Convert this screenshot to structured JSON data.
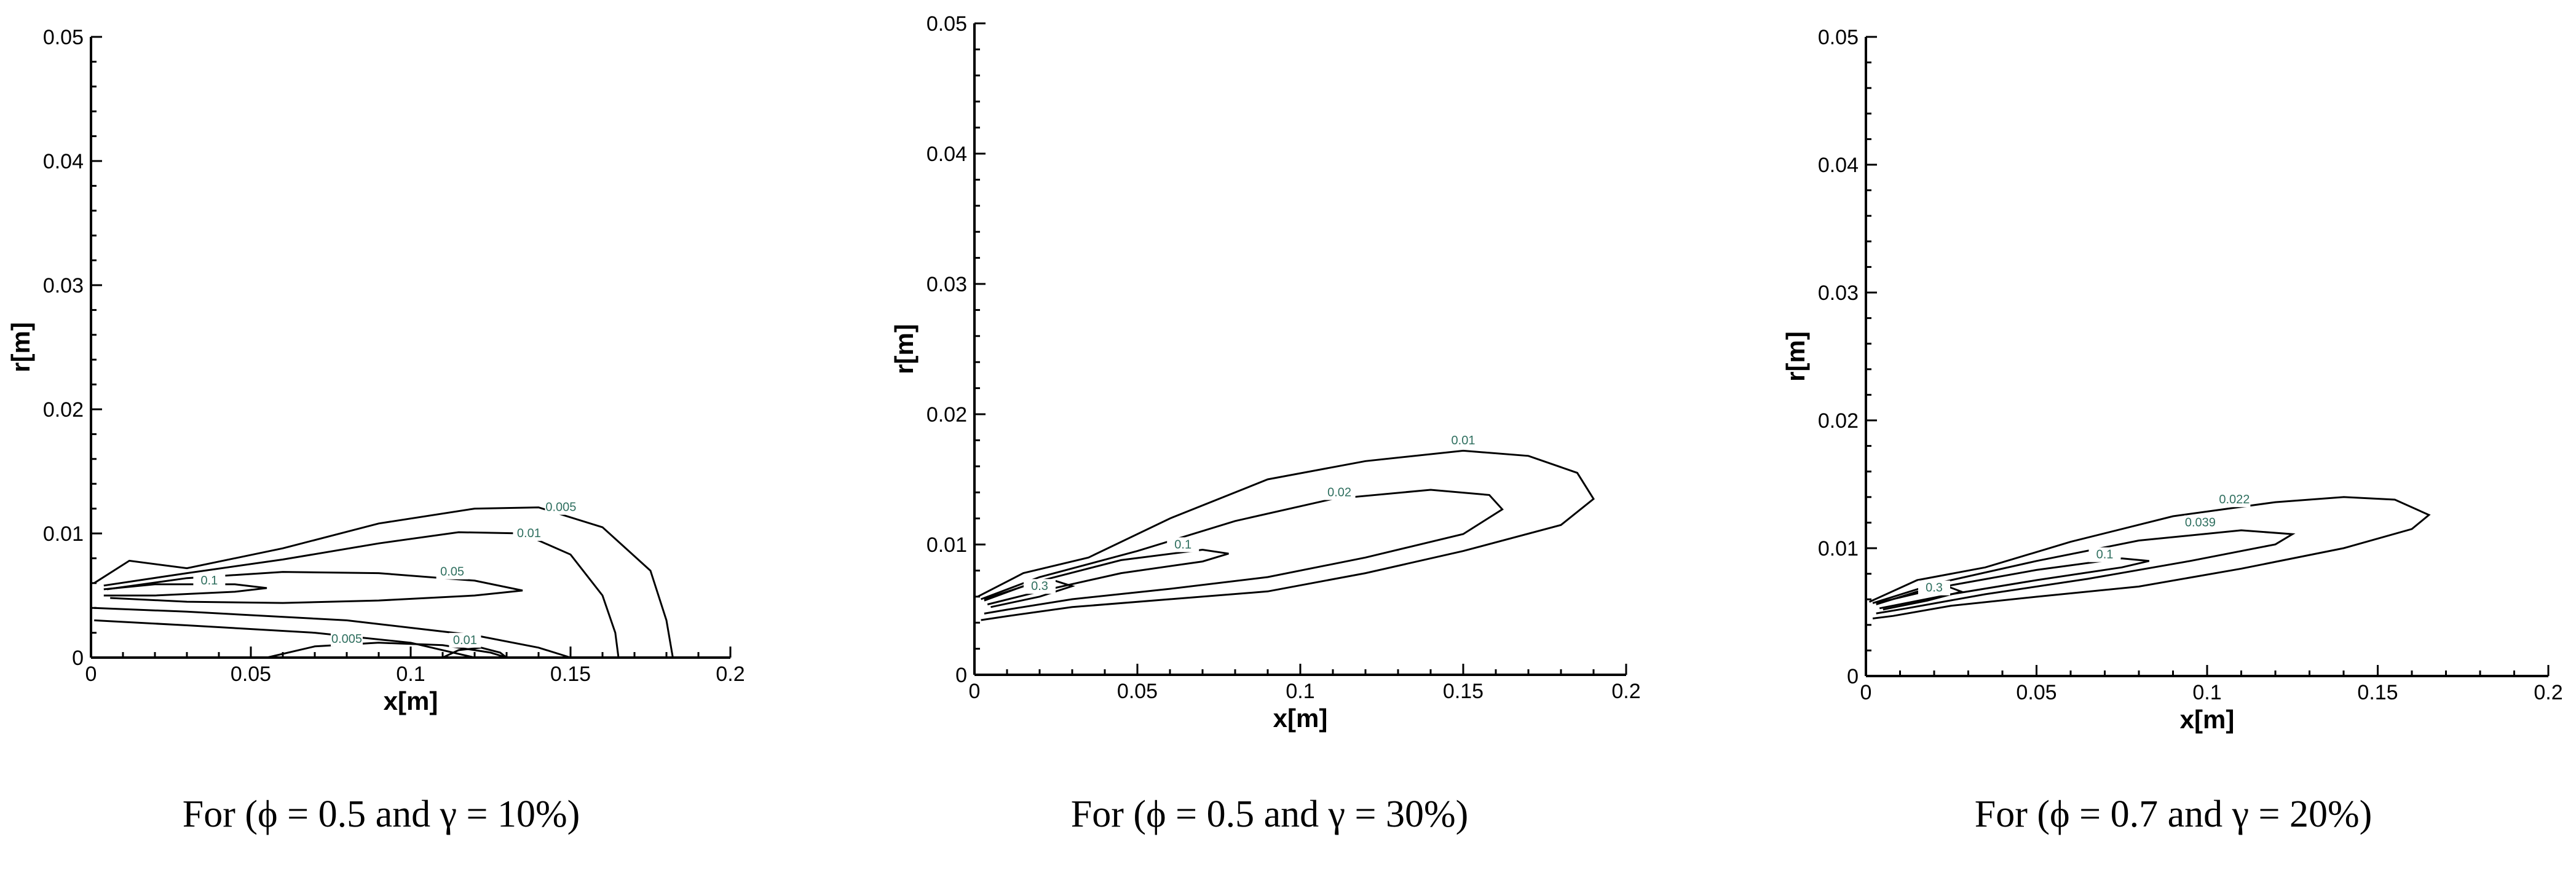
{
  "chart_data": [
    {
      "type": "contour",
      "caption": "For (ϕ = 0.5 and γ = 10%)",
      "xlabel": "x[m]",
      "ylabel": "r[m]",
      "xlim": [
        0,
        0.2
      ],
      "ylim": [
        0,
        0.05
      ],
      "xticks": [
        "0",
        "0.05",
        "0.1",
        "0.15",
        "0.2"
      ],
      "yticks": [
        "0",
        "0.01",
        "0.02",
        "0.03",
        "0.04",
        "0.05"
      ],
      "contours": [
        {
          "level": "0.005",
          "label_at": [
            0.147,
            0.0118
          ],
          "points": [
            [
              0.001,
              0.006
            ],
            [
              0.012,
              0.0078
            ],
            [
              0.03,
              0.0072
            ],
            [
              0.06,
              0.0088
            ],
            [
              0.09,
              0.0108
            ],
            [
              0.12,
              0.012
            ],
            [
              0.14,
              0.0121
            ],
            [
              0.16,
              0.0105
            ],
            [
              0.175,
              0.007
            ],
            [
              0.18,
              0.003
            ],
            [
              0.182,
              0.0
            ]
          ]
        },
        {
          "level": "0.01",
          "label_at": [
            0.137,
            0.0097
          ],
          "points": [
            [
              0.004,
              0.0058
            ],
            [
              0.03,
              0.0068
            ],
            [
              0.06,
              0.0079
            ],
            [
              0.09,
              0.0092
            ],
            [
              0.115,
              0.0101
            ],
            [
              0.135,
              0.01
            ],
            [
              0.15,
              0.0083
            ],
            [
              0.16,
              0.005
            ],
            [
              0.164,
              0.002
            ],
            [
              0.165,
              0.0
            ]
          ]
        },
        {
          "level": "0.05",
          "label_at": [
            0.113,
            0.0066
          ],
          "points": [
            [
              0.005,
              0.0055
            ],
            [
              0.03,
              0.0064
            ],
            [
              0.06,
              0.0069
            ],
            [
              0.09,
              0.0068
            ],
            [
              0.12,
              0.0062
            ],
            [
              0.135,
              0.0054
            ],
            [
              0.12,
              0.005
            ],
            [
              0.09,
              0.0046
            ],
            [
              0.06,
              0.0044
            ],
            [
              0.03,
              0.0045
            ],
            [
              0.006,
              0.0048
            ]
          ]
        },
        {
          "level": "0.1",
          "label_at": [
            0.037,
            0.0059
          ],
          "points": [
            [
              0.004,
              0.0055
            ],
            [
              0.02,
              0.0059
            ],
            [
              0.045,
              0.0059
            ],
            [
              0.055,
              0.0056
            ],
            [
              0.045,
              0.0053
            ],
            [
              0.02,
              0.005
            ],
            [
              0.004,
              0.005
            ]
          ]
        },
        {
          "level": "",
          "label_at": null,
          "points": [
            [
              0.001,
              0.004
            ],
            [
              0.03,
              0.0037
            ],
            [
              0.08,
              0.003
            ],
            [
              0.12,
              0.0018
            ],
            [
              0.14,
              0.0008
            ],
            [
              0.15,
              0.0
            ]
          ]
        },
        {
          "level": "",
          "label_at": null,
          "points": [
            [
              0.001,
              0.003
            ],
            [
              0.03,
              0.0026
            ],
            [
              0.07,
              0.002
            ],
            [
              0.1,
              0.0012
            ],
            [
              0.12,
              0.0
            ]
          ]
        },
        {
          "level": "0.005",
          "label_at": [
            0.08,
            0.0012
          ],
          "points": [
            [
              0.055,
              0.0
            ],
            [
              0.07,
              0.0009
            ],
            [
              0.09,
              0.0012
            ],
            [
              0.11,
              0.001
            ],
            [
              0.125,
              0.0004
            ],
            [
              0.13,
              0.0
            ]
          ]
        },
        {
          "level": "0.01",
          "label_at": [
            0.117,
            0.0011
          ],
          "points": [
            [
              0.11,
              0.0
            ],
            [
              0.115,
              0.0006
            ],
            [
              0.122,
              0.0008
            ],
            [
              0.128,
              0.0004
            ],
            [
              0.13,
              0.0
            ]
          ]
        }
      ]
    },
    {
      "type": "contour",
      "caption": "For (ϕ = 0.5 and γ = 30%)",
      "xlabel": "x[m]",
      "ylabel": "r[m]",
      "xlim": [
        0,
        0.2
      ],
      "ylim": [
        0,
        0.05
      ],
      "xticks": [
        "0",
        "0.05",
        "0.1",
        "0.15",
        "0.2"
      ],
      "yticks": [
        "0",
        "0.01",
        "0.02",
        "0.03",
        "0.04",
        "0.05"
      ],
      "contours": [
        {
          "level": "0.01",
          "label_at": [
            0.15,
            0.0177
          ],
          "points": [
            [
              0.001,
              0.006
            ],
            [
              0.015,
              0.0078
            ],
            [
              0.035,
              0.009
            ],
            [
              0.06,
              0.012
            ],
            [
              0.09,
              0.015
            ],
            [
              0.12,
              0.0164
            ],
            [
              0.15,
              0.0172
            ],
            [
              0.17,
              0.0168
            ],
            [
              0.185,
              0.0155
            ],
            [
              0.19,
              0.0135
            ],
            [
              0.18,
              0.0115
            ],
            [
              0.15,
              0.0095
            ],
            [
              0.12,
              0.0078
            ],
            [
              0.09,
              0.0064
            ],
            [
              0.06,
              0.0058
            ],
            [
              0.03,
              0.0052
            ],
            [
              0.01,
              0.0045
            ],
            [
              0.002,
              0.0042
            ]
          ]
        },
        {
          "level": "0.02",
          "label_at": [
            0.112,
            0.0137
          ],
          "points": [
            [
              0.002,
              0.0058
            ],
            [
              0.02,
              0.0075
            ],
            [
              0.05,
              0.0095
            ],
            [
              0.08,
              0.0118
            ],
            [
              0.11,
              0.0135
            ],
            [
              0.14,
              0.0142
            ],
            [
              0.158,
              0.0138
            ],
            [
              0.162,
              0.0127
            ],
            [
              0.15,
              0.0108
            ],
            [
              0.12,
              0.009
            ],
            [
              0.09,
              0.0075
            ],
            [
              0.06,
              0.0066
            ],
            [
              0.03,
              0.0058
            ],
            [
              0.01,
              0.005
            ],
            [
              0.003,
              0.0047
            ]
          ]
        },
        {
          "level": "0.1",
          "label_at": [
            0.064,
            0.0097
          ],
          "points": [
            [
              0.003,
              0.0058
            ],
            [
              0.02,
              0.0072
            ],
            [
              0.045,
              0.0088
            ],
            [
              0.07,
              0.0096
            ],
            [
              0.078,
              0.0093
            ],
            [
              0.07,
              0.0087
            ],
            [
              0.045,
              0.0078
            ],
            [
              0.02,
              0.0064
            ],
            [
              0.004,
              0.0054
            ]
          ]
        },
        {
          "level": "0.3",
          "label_at": [
            0.02,
            0.0065
          ],
          "points": [
            [
              0.003,
              0.0057
            ],
            [
              0.015,
              0.0068
            ],
            [
              0.025,
              0.0072
            ],
            [
              0.03,
              0.0068
            ],
            [
              0.02,
              0.006
            ],
            [
              0.005,
              0.0052
            ]
          ]
        }
      ]
    },
    {
      "type": "contour",
      "caption": "For (ϕ = 0.7 and γ = 20%)",
      "xlabel": "x[m]",
      "ylabel": "r[m]",
      "xlim": [
        0,
        0.2
      ],
      "ylim": [
        0,
        0.05
      ],
      "xticks": [
        "0",
        "0.05",
        "0.1",
        "0.15",
        "0.2"
      ],
      "yticks": [
        "0",
        "0.01",
        "0.02",
        "0.03",
        "0.04",
        "0.05"
      ],
      "contours": [
        {
          "level": "0.022",
          "label_at": [
            0.108,
            0.0135
          ],
          "points": [
            [
              0.001,
              0.0058
            ],
            [
              0.015,
              0.0075
            ],
            [
              0.035,
              0.0085
            ],
            [
              0.06,
              0.0105
            ],
            [
              0.09,
              0.0125
            ],
            [
              0.12,
              0.0136
            ],
            [
              0.14,
              0.014
            ],
            [
              0.155,
              0.0138
            ],
            [
              0.165,
              0.0126
            ],
            [
              0.16,
              0.0115
            ],
            [
              0.14,
              0.01
            ],
            [
              0.11,
              0.0084
            ],
            [
              0.08,
              0.007
            ],
            [
              0.05,
              0.0062
            ],
            [
              0.025,
              0.0055
            ],
            [
              0.008,
              0.0047
            ],
            [
              0.002,
              0.0045
            ]
          ]
        },
        {
          "level": "0.039",
          "label_at": [
            0.098,
            0.0117
          ],
          "points": [
            [
              0.002,
              0.0057
            ],
            [
              0.02,
              0.0072
            ],
            [
              0.05,
              0.009
            ],
            [
              0.08,
              0.0106
            ],
            [
              0.11,
              0.0114
            ],
            [
              0.125,
              0.0111
            ],
            [
              0.12,
              0.0103
            ],
            [
              0.095,
              0.009
            ],
            [
              0.065,
              0.0076
            ],
            [
              0.035,
              0.0064
            ],
            [
              0.012,
              0.0053
            ],
            [
              0.003,
              0.0049
            ]
          ]
        },
        {
          "level": "0.1",
          "label_at": [
            0.07,
            0.0092
          ],
          "points": [
            [
              0.003,
              0.0057
            ],
            [
              0.025,
              0.0071
            ],
            [
              0.05,
              0.0083
            ],
            [
              0.075,
              0.0092
            ],
            [
              0.083,
              0.009
            ],
            [
              0.075,
              0.0085
            ],
            [
              0.05,
              0.0075
            ],
            [
              0.025,
              0.0064
            ],
            [
              0.004,
              0.0053
            ]
          ]
        },
        {
          "level": "0.3",
          "label_at": [
            0.02,
            0.0066
          ],
          "points": [
            [
              0.003,
              0.0056
            ],
            [
              0.015,
              0.0066
            ],
            [
              0.024,
              0.007
            ],
            [
              0.028,
              0.0066
            ],
            [
              0.018,
              0.0059
            ],
            [
              0.005,
              0.0052
            ]
          ]
        }
      ]
    }
  ]
}
